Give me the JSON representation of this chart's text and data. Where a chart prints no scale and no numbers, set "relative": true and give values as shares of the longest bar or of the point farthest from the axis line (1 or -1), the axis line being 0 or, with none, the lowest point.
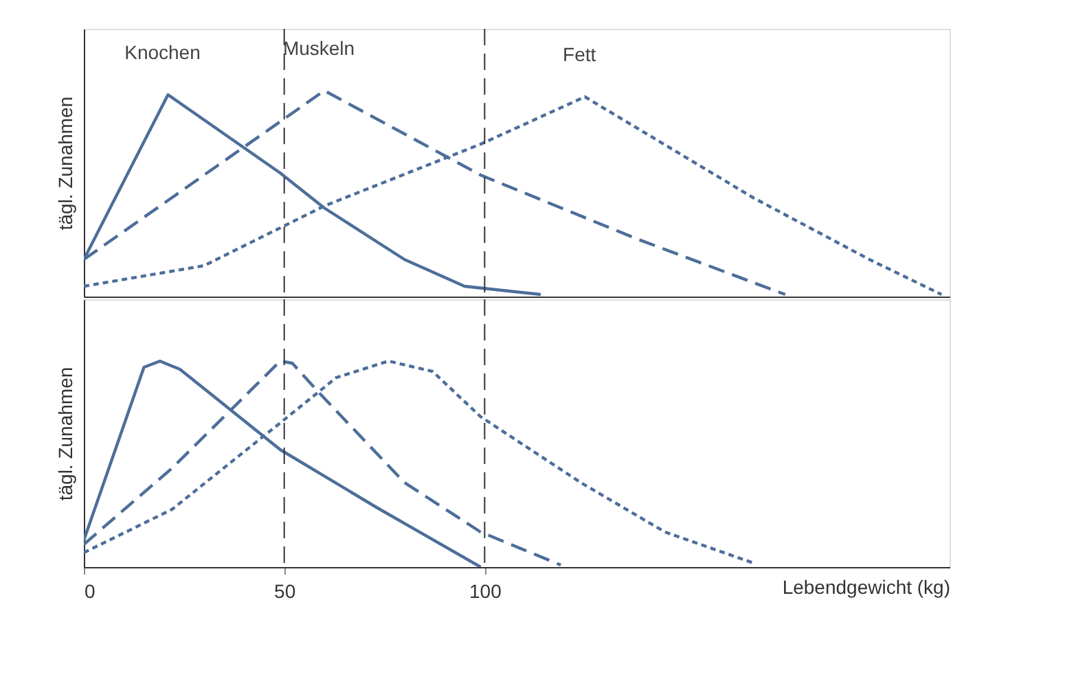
{
  "chart_data": [
    {
      "type": "line",
      "relative": true,
      "ylabel": "tägl. Zunahmen",
      "xlim": [
        0,
        216
      ],
      "tick_labels": false,
      "grid": false,
      "ref_lines": [
        {
          "axis": "x",
          "value": 50,
          "color": "#333333",
          "line_style": "dashed"
        },
        {
          "axis": "x",
          "value": 100,
          "color": "#333333",
          "line_style": "dashed"
        }
      ],
      "series": [
        {
          "name": "Knochen",
          "color": "#4d6e99",
          "line_style": "solid",
          "x": [
            0,
            21,
            49,
            60,
            80,
            95,
            114
          ],
          "values": [
            0.18,
            0.98,
            0.6,
            0.43,
            0.18,
            0.05,
            0.01
          ]
        },
        {
          "name": "Muskeln",
          "color": "#4d6e99",
          "line_style": "dashed",
          "x": [
            0,
            60,
            99,
            138,
            175
          ],
          "values": [
            0.18,
            1.0,
            0.59,
            0.28,
            0.01
          ]
        },
        {
          "name": "Fett",
          "color": "#4d6e99",
          "line_style": "dotted",
          "x": [
            0,
            30,
            60,
            99,
            125,
            167,
            196,
            214
          ],
          "values": [
            0.05,
            0.15,
            0.44,
            0.74,
            0.97,
            0.48,
            0.18,
            0.01
          ]
        }
      ]
    },
    {
      "type": "line",
      "relative": true,
      "ylabel": "tägl. Zunahmen",
      "xlabel": "Lebendgewicht (kg)",
      "xlim": [
        0,
        216
      ],
      "xticks": [
        0,
        50,
        100
      ],
      "tick_labels": "x",
      "grid": false,
      "ref_lines": [
        {
          "axis": "x",
          "value": 50,
          "color": "#333333",
          "line_style": "dashed"
        },
        {
          "axis": "x",
          "value": 100,
          "color": "#333333",
          "line_style": "dashed"
        }
      ],
      "series": [
        {
          "color": "#4d6e99",
          "line_style": "solid",
          "x": [
            0,
            15,
            19,
            24,
            49,
            73,
            99
          ],
          "values": [
            0.13,
            0.97,
            1.0,
            0.96,
            0.57,
            0.29,
            0
          ]
        },
        {
          "color": "#4d6e99",
          "line_style": "dashed",
          "x": [
            0,
            22,
            49,
            52,
            59,
            80,
            99,
            119
          ],
          "values": [
            0.11,
            0.48,
            1.0,
            0.99,
            0.84,
            0.41,
            0.17,
            0.01
          ]
        },
        {
          "color": "#4d6e99",
          "line_style": "dotted",
          "x": [
            0,
            22,
            49,
            63,
            76,
            87,
            99,
            124,
            145,
            167
          ],
          "values": [
            0.07,
            0.28,
            0.7,
            0.92,
            1.0,
            0.95,
            0.73,
            0.41,
            0.17,
            0.02
          ]
        }
      ]
    }
  ]
}
